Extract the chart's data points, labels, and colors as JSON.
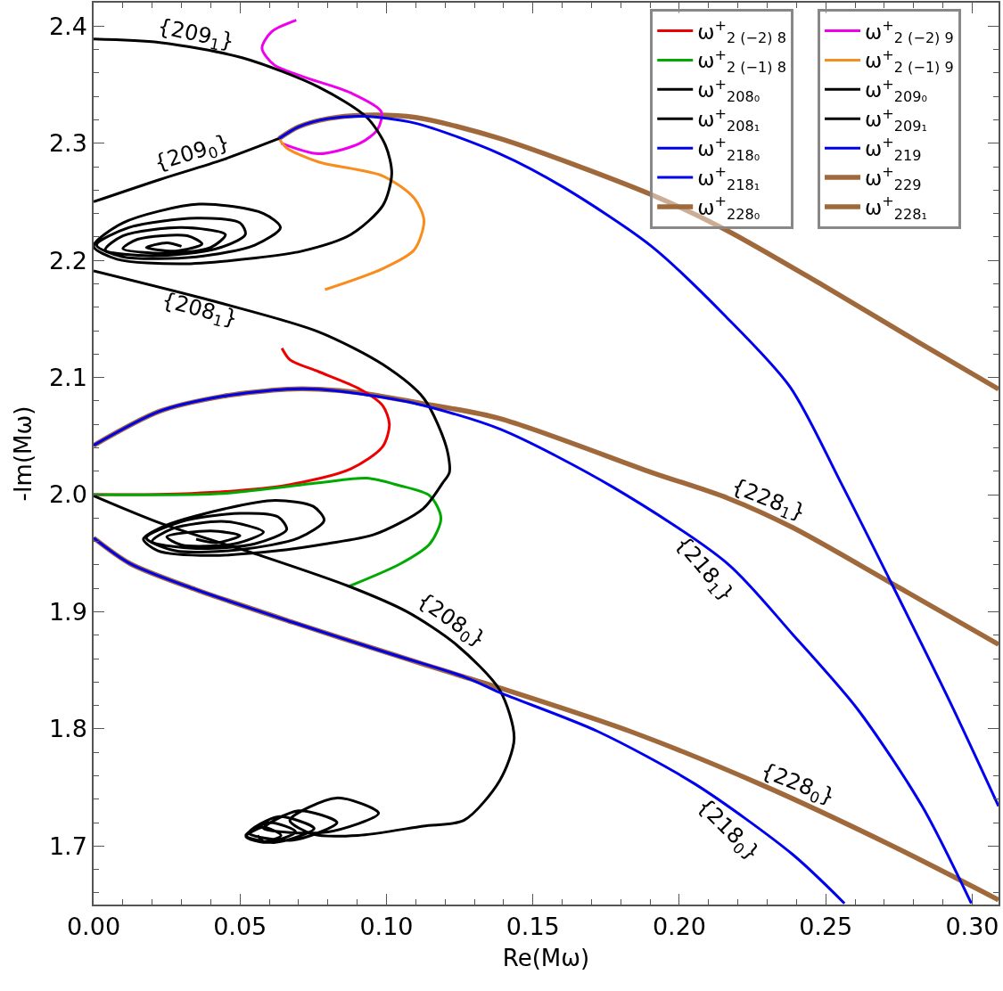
{
  "chart_data": {
    "type": "line",
    "xlabel": "Re(Mω)",
    "ylabel": "-Im(Mω)",
    "xlim": [
      0,
      0.309
    ],
    "ylim": [
      1.65,
      2.42
    ],
    "xticks": [
      {
        "value": 0,
        "label": "0.00"
      },
      {
        "value": 0.01,
        "label": null
      },
      {
        "value": 0.02,
        "label": null
      },
      {
        "value": 0.03,
        "label": null
      },
      {
        "value": 0.04,
        "label": null
      },
      {
        "value": 0.05,
        "label": "0.05"
      },
      {
        "value": 0.06,
        "label": null
      },
      {
        "value": 0.07,
        "label": null
      },
      {
        "value": 0.08,
        "label": null
      },
      {
        "value": 0.09,
        "label": null
      },
      {
        "value": 0.1,
        "label": "0.10"
      },
      {
        "value": 0.11,
        "label": null
      },
      {
        "value": 0.12,
        "label": null
      },
      {
        "value": 0.13,
        "label": null
      },
      {
        "value": 0.14,
        "label": null
      },
      {
        "value": 0.15,
        "label": "0.15"
      },
      {
        "value": 0.16,
        "label": null
      },
      {
        "value": 0.17,
        "label": null
      },
      {
        "value": 0.18,
        "label": null
      },
      {
        "value": 0.19,
        "label": null
      },
      {
        "value": 0.2,
        "label": "0.20"
      },
      {
        "value": 0.21,
        "label": null
      },
      {
        "value": 0.22,
        "label": null
      },
      {
        "value": 0.23,
        "label": null
      },
      {
        "value": 0.24,
        "label": null
      },
      {
        "value": 0.25,
        "label": "0.25"
      },
      {
        "value": 0.26,
        "label": null
      },
      {
        "value": 0.27,
        "label": null
      },
      {
        "value": 0.28,
        "label": null
      },
      {
        "value": 0.29,
        "label": null
      },
      {
        "value": 0.3,
        "label": "0.30"
      }
    ],
    "yticks": [
      {
        "value": 1.66,
        "label": null
      },
      {
        "value": 1.68,
        "label": null
      },
      1.7,
      {
        "value": 1.72,
        "label": null
      },
      {
        "value": 1.74,
        "label": null
      },
      {
        "value": 1.76,
        "label": null
      },
      {
        "value": 1.78,
        "label": null
      },
      1.8,
      {
        "value": 1.82,
        "label": null
      },
      {
        "value": 1.84,
        "label": null
      },
      {
        "value": 1.86,
        "label": null
      },
      {
        "value": 1.88,
        "label": null
      },
      1.9,
      {
        "value": 1.92,
        "label": null
      },
      {
        "value": 1.94,
        "label": null
      },
      {
        "value": 1.96,
        "label": null
      },
      {
        "value": 1.98,
        "label": null
      },
      {
        "value": 2,
        "label": "2.0"
      },
      {
        "value": 2.02,
        "label": null
      },
      {
        "value": 2.04,
        "label": null
      },
      {
        "value": 2.06,
        "label": null
      },
      {
        "value": 2.08,
        "label": null
      },
      2.1,
      {
        "value": 2.12,
        "label": null
      },
      {
        "value": 2.14,
        "label": null
      },
      {
        "value": 2.16,
        "label": null
      },
      {
        "value": 2.18,
        "label": null
      },
      2.2,
      {
        "value": 2.22,
        "label": null
      },
      {
        "value": 2.24,
        "label": null
      },
      {
        "value": 2.26,
        "label": null
      },
      {
        "value": 2.28,
        "label": null
      },
      2.3,
      {
        "value": 2.32,
        "label": null
      },
      {
        "value": 2.34,
        "label": null
      },
      {
        "value": 2.36,
        "label": null
      },
      {
        "value": 2.38,
        "label": null
      },
      2.4
    ],
    "grid": false,
    "legend": "top right",
    "line_style": "solid",
    "marker": "none",
    "series": [
      {
        "name": "ω$^{+}$$_{2 (−2) 8}$",
        "color": "#ee0000",
        "x": [
          0,
          0.0333,
          0.0659,
          0.0878,
          0.0987,
          0.101,
          0.0987,
          0.091,
          0.0768,
          0.0671,
          0.0643
        ],
        "values": [
          2.0,
          2.001,
          2.008,
          2.022,
          2.041,
          2.06,
          2.076,
          2.09,
          2.105,
          2.115,
          2.125
        ]
      },
      {
        "name": "ω$^{+}$$_{2 (−2) 9}$",
        "color": "#ee00ee",
        "x": [
          0.0692,
          0.0607,
          0.0575,
          0.0616,
          0.0713,
          0.0878,
          0.0982,
          0.097,
          0.091,
          0.0768,
          0.064
        ],
        "values": [
          2.405,
          2.395,
          2.381,
          2.367,
          2.357,
          2.343,
          2.327,
          2.312,
          2.3,
          2.291,
          2.3
        ]
      },
      {
        "name": "ω$^{+}$$_{2 (−1) 8}$",
        "color": "#00aa00",
        "x": [
          0,
          0.0442,
          0.0768,
          0.0933,
          0.104,
          0.1148,
          0.1186,
          0.1148,
          0.1048,
          0.0875
        ],
        "values": [
          2.0,
          2.001,
          2.01,
          2.014,
          2.008,
          1.999,
          1.98,
          1.958,
          1.941,
          1.922
        ]
      },
      {
        "name": "ω$^{+}$$_{2 (−1) 9}$",
        "color": "#f88c1c",
        "x": [
          0.0633,
          0.0659,
          0.0768,
          0.0988,
          0.1095,
          0.1128,
          0.1095,
          0.0988,
          0.079
        ],
        "values": [
          2.304,
          2.296,
          2.284,
          2.272,
          2.253,
          2.234,
          2.209,
          2.193,
          2.175
        ]
      },
      {
        "name": "ω$^{+}$$_{208₀}$",
        "color": "#000000",
        "x": [
          0,
          0.0235,
          0.057,
          0.0869,
          0.107,
          0.1238,
          0.1387,
          0.1436,
          0.1387,
          0.1265,
          0.1125,
          0.0902,
          0.075,
          0.067,
          0.083,
          0.0973,
          0.08,
          0.058,
          0.07,
          0.0831,
          0.068,
          0.053,
          0.063,
          0.0753,
          0.062,
          0.052,
          0.06,
          0.069,
          0.059,
          0.052,
          0.058,
          0.064,
          0.058,
          0.056
        ],
        "values": [
          1.999,
          1.975,
          1.948,
          1.922,
          1.9,
          1.872,
          1.833,
          1.792,
          1.756,
          1.722,
          1.717,
          1.709,
          1.71,
          1.722,
          1.741,
          1.728,
          1.712,
          1.715,
          1.73,
          1.72,
          1.705,
          1.711,
          1.725,
          1.715,
          1.703,
          1.709,
          1.72,
          1.712,
          1.703,
          1.708,
          1.716,
          1.709,
          1.704,
          1.709
        ]
      },
      {
        "name": "ω$^{+}$$_{209₀}$",
        "color": "#000000",
        "x": [
          0,
          0.0226,
          0.0442,
          0.0633
        ],
        "values": [
          2.25,
          2.269,
          2.286,
          2.304
        ]
      },
      {
        "name": "ω$^{+}$$_{208₁}$",
        "color": "#000000",
        "x": [
          0,
          0.0442,
          0.0768,
          0.0988,
          0.1128,
          0.1204,
          0.1215,
          0.1192,
          0.1125,
          0.0959,
          0.0793,
          0.0625,
          0.04,
          0.022,
          0.017,
          0.025,
          0.045,
          0.062,
          0.075,
          0.0787,
          0.07,
          0.05,
          0.028,
          0.018,
          0.03,
          0.05,
          0.063,
          0.0659,
          0.055,
          0.035,
          0.02,
          0.027,
          0.045,
          0.058,
          0.048,
          0.03,
          0.025,
          0.04,
          0.05,
          0.042,
          0.035
        ],
        "values": [
          2.191,
          2.163,
          2.139,
          2.111,
          2.082,
          2.041,
          2.019,
          2.01,
          1.988,
          1.966,
          1.958,
          1.952,
          1.948,
          1.952,
          1.962,
          1.974,
          1.988,
          1.995,
          1.99,
          1.978,
          1.963,
          1.953,
          1.952,
          1.963,
          1.977,
          1.984,
          1.981,
          1.97,
          1.958,
          1.954,
          1.96,
          1.971,
          1.977,
          1.968,
          1.958,
          1.957,
          1.964,
          1.969,
          1.965,
          1.959,
          1.962
        ]
      },
      {
        "name": "ω$^{+}$$_{209₁}$",
        "color": "#000000",
        "x": [
          0,
          0.0226,
          0.0507,
          0.0768,
          0.0933,
          0.0997,
          0.1018,
          0.0988,
          0.0878,
          0.0713,
          0.0552,
          0.03,
          0.008,
          0,
          0.01,
          0.036,
          0.058,
          0.0638,
          0.055,
          0.035,
          0.01,
          0.001,
          0.012,
          0.035,
          0.05,
          0.0518,
          0.042,
          0.02,
          0.004,
          0.01,
          0.03,
          0.045,
          0.04,
          0.025,
          0.01,
          0.015,
          0.032,
          0.037,
          0.028,
          0.018,
          0.025,
          0.03
        ],
        "values": [
          2.389,
          2.386,
          2.373,
          2.348,
          2.322,
          2.298,
          2.274,
          2.247,
          2.222,
          2.208,
          2.202,
          2.197,
          2.201,
          2.212,
          2.232,
          2.248,
          2.24,
          2.228,
          2.213,
          2.203,
          2.203,
          2.213,
          2.228,
          2.236,
          2.232,
          2.222,
          2.21,
          2.204,
          2.209,
          2.221,
          2.228,
          2.222,
          2.211,
          2.206,
          2.21,
          2.218,
          2.221,
          2.214,
          2.208,
          2.211,
          2.215,
          2.212
        ]
      },
      {
        "name": "ω$^{+}$$_{218₀}$",
        "color": "#0000ee",
        "x": [
          0,
          0.0125,
          0.0348,
          0.068,
          0.1015,
          0.127,
          0.1387,
          0.172,
          0.2053,
          0.2386,
          0.2564
        ],
        "values": [
          1.963,
          1.941,
          1.919,
          1.891,
          1.864,
          1.844,
          1.831,
          1.798,
          1.753,
          1.693,
          1.651
        ]
      },
      {
        "name": "ω$^{+}$$_{219}$",
        "color": "#0000ee",
        "x": [
          0.0633,
          0.07,
          0.08,
          0.092,
          0.11,
          0.1387,
          0.1607,
          0.1905,
          0.2159,
          0.2378,
          0.2552,
          0.2729,
          0.293,
          0.309
        ],
        "values": [
          2.304,
          2.314,
          2.321,
          2.323,
          2.317,
          2.291,
          2.262,
          2.212,
          2.152,
          2.092,
          2.01,
          1.922,
          1.82,
          1.734
        ]
      },
      {
        "name": "ω$^{+}$$_{218₁}$",
        "color": "#0000ee",
        "x": [
          0,
          0.0224,
          0.0442,
          0.0659,
          0.0768,
          0.091,
          0.1095,
          0.1387,
          0.1776,
          0.2165,
          0.2386,
          0.2608,
          0.2829,
          0.2997
        ],
        "values": [
          2.042,
          2.071,
          2.084,
          2.09,
          2.09,
          2.086,
          2.078,
          2.056,
          2.006,
          1.941,
          1.881,
          1.817,
          1.734,
          1.651
        ]
      },
      {
        "name": "ω$^{+}$$_{229}$",
        "color": "#a0693c",
        "x": [
          0.0633,
          0.07,
          0.08,
          0.092,
          0.11,
          0.1387,
          0.1905,
          0.2159,
          0.2488,
          0.2817,
          0.309
        ],
        "values": [
          2.304,
          2.314,
          2.321,
          2.324,
          2.322,
          2.304,
          2.256,
          2.226,
          2.179,
          2.13,
          2.09
        ]
      },
      {
        "name": "ω$^{+}$$_{228₀}$",
        "color": "#a0693c",
        "x": [
          0,
          0.0125,
          0.0348,
          0.068,
          0.1015,
          0.127,
          0.1387,
          0.1831,
          0.2274,
          0.272,
          0.309
        ],
        "values": [
          1.963,
          1.941,
          1.919,
          1.891,
          1.864,
          1.844,
          1.835,
          1.798,
          1.753,
          1.701,
          1.654
        ]
      },
      {
        "name": "ω$^{+}$$_{228₁}$",
        "color": "#a0693c",
        "x": [
          0,
          0.0224,
          0.0442,
          0.0659,
          0.0768,
          0.091,
          0.1095,
          0.1387,
          0.1905,
          0.2165,
          0.2386,
          0.272,
          0.309
        ],
        "values": [
          2.042,
          2.071,
          2.084,
          2.09,
          2.09,
          2.087,
          2.079,
          2.065,
          2.019,
          1.997,
          1.972,
          1.925,
          1.872
        ]
      }
    ],
    "annotations": [
      {
        "text": "{209$_{1}$}",
        "x": 0.035,
        "y": 2.38
      },
      {
        "text": "{209$_{0}$}",
        "x": 0.035,
        "y": 2.279
      },
      {
        "text": "{208$_{1}$}",
        "x": 0.035,
        "y": 2.169
      },
      {
        "text": "{208$_{0}$}",
        "x": 0.117,
        "y": 1.883
      },
      {
        "text": "{228$_{1}$}",
        "x": 0.229,
        "y": 1.983
      },
      {
        "text": "{218$_{1}$}",
        "x": 0.214,
        "y": 1.945
      },
      {
        "text": "{228$_{0}$}",
        "x": 0.239,
        "y": 1.74
      },
      {
        "text": "{218$_{0}$}",
        "x": 0.222,
        "y": 1.723
      }
    ]
  }
}
